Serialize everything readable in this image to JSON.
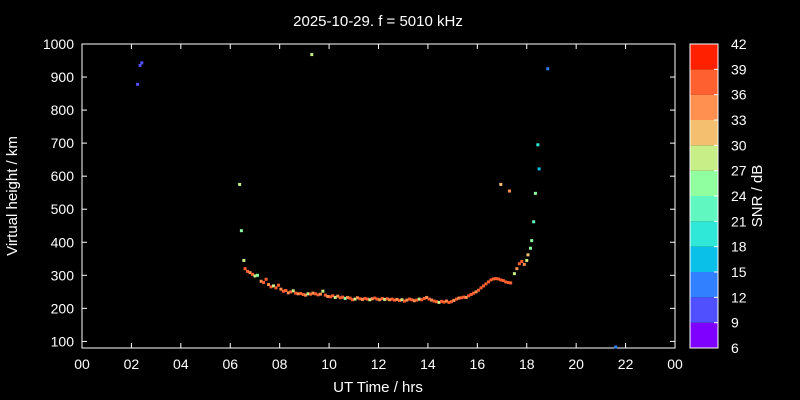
{
  "chart_data": {
    "type": "scatter",
    "title": "2025-10-29. f = 5010 kHz",
    "xlabel": "UT Time / hrs",
    "ylabel": "Virtual height / km",
    "xlim": [
      0,
      24
    ],
    "ylim": [
      80,
      1000
    ],
    "xticks": [
      "00",
      "02",
      "04",
      "06",
      "08",
      "10",
      "12",
      "14",
      "16",
      "18",
      "20",
      "22",
      "00"
    ],
    "yticks": [
      "100",
      "200",
      "300",
      "400",
      "500",
      "600",
      "700",
      "800",
      "900",
      "1000"
    ],
    "grid": false,
    "colorbar": {
      "label": "SNR / dB",
      "min": 6,
      "max": 42,
      "ticks": [
        "6",
        "9",
        "12",
        "15",
        "18",
        "21",
        "24",
        "27",
        "30",
        "33",
        "36",
        "39",
        "42"
      ],
      "colors": [
        "#8000ff",
        "#5050ff",
        "#3080ff",
        "#0ac0e8",
        "#30e8d8",
        "#60f8c0",
        "#90ffa0",
        "#c8ee88",
        "#f4c070",
        "#ff9050",
        "#ff6030",
        "#ff2000"
      ]
    },
    "points": [
      [
        2.25,
        878,
        9
      ],
      [
        2.35,
        935,
        9
      ],
      [
        2.42,
        943,
        9
      ],
      [
        9.3,
        968,
        27
      ],
      [
        18.85,
        925,
        12
      ],
      [
        6.38,
        575,
        27
      ],
      [
        6.45,
        435,
        24
      ],
      [
        6.55,
        345,
        27
      ],
      [
        6.6,
        320,
        36
      ],
      [
        6.7,
        312,
        36
      ],
      [
        6.8,
        308,
        33
      ],
      [
        6.9,
        303,
        36
      ],
      [
        7.0,
        298,
        27
      ],
      [
        7.1,
        300,
        24
      ],
      [
        7.25,
        282,
        33
      ],
      [
        7.35,
        278,
        36
      ],
      [
        7.45,
        288,
        36
      ],
      [
        7.55,
        272,
        33
      ],
      [
        7.65,
        265,
        36
      ],
      [
        7.75,
        268,
        27
      ],
      [
        7.85,
        262,
        36
      ],
      [
        7.95,
        270,
        36
      ],
      [
        8.05,
        258,
        33
      ],
      [
        8.15,
        252,
        36
      ],
      [
        8.25,
        254,
        36
      ],
      [
        8.35,
        247,
        33
      ],
      [
        8.45,
        250,
        36
      ],
      [
        8.55,
        253,
        27
      ],
      [
        8.65,
        246,
        36
      ],
      [
        8.75,
        244,
        33
      ],
      [
        8.85,
        245,
        36
      ],
      [
        8.95,
        242,
        36
      ],
      [
        9.05,
        240,
        33
      ],
      [
        9.15,
        244,
        27
      ],
      [
        9.25,
        243,
        36
      ],
      [
        9.35,
        246,
        33
      ],
      [
        9.45,
        244,
        36
      ],
      [
        9.55,
        241,
        36
      ],
      [
        9.65,
        243,
        33
      ],
      [
        9.75,
        252,
        27
      ],
      [
        9.85,
        240,
        36
      ],
      [
        9.95,
        236,
        33
      ],
      [
        10.05,
        235,
        36
      ],
      [
        10.15,
        238,
        36
      ],
      [
        10.25,
        233,
        27
      ],
      [
        10.35,
        237,
        33
      ],
      [
        10.45,
        232,
        36
      ],
      [
        10.55,
        234,
        36
      ],
      [
        10.65,
        230,
        24
      ],
      [
        10.75,
        233,
        33
      ],
      [
        10.85,
        231,
        36
      ],
      [
        10.95,
        226,
        36
      ],
      [
        11.05,
        228,
        27
      ],
      [
        11.15,
        232,
        33
      ],
      [
        11.25,
        229,
        36
      ],
      [
        11.35,
        227,
        33
      ],
      [
        11.45,
        230,
        36
      ],
      [
        11.55,
        228,
        36
      ],
      [
        11.65,
        226,
        27
      ],
      [
        11.75,
        229,
        33
      ],
      [
        11.85,
        231,
        36
      ],
      [
        11.95,
        228,
        36
      ],
      [
        12.05,
        226,
        33
      ],
      [
        12.15,
        230,
        36
      ],
      [
        12.25,
        227,
        27
      ],
      [
        12.35,
        229,
        36
      ],
      [
        12.45,
        226,
        33
      ],
      [
        12.55,
        228,
        36
      ],
      [
        12.65,
        225,
        36
      ],
      [
        12.75,
        227,
        33
      ],
      [
        12.85,
        224,
        36
      ],
      [
        12.95,
        226,
        27
      ],
      [
        13.05,
        222,
        36
      ],
      [
        13.15,
        225,
        33
      ],
      [
        13.25,
        228,
        36
      ],
      [
        13.35,
        226,
        36
      ],
      [
        13.45,
        223,
        33
      ],
      [
        13.55,
        225,
        36
      ],
      [
        13.65,
        228,
        27
      ],
      [
        13.75,
        226,
        36
      ],
      [
        13.85,
        230,
        36
      ],
      [
        13.95,
        233,
        33
      ],
      [
        14.05,
        228,
        36
      ],
      [
        14.15,
        225,
        33
      ],
      [
        14.25,
        222,
        36
      ],
      [
        14.35,
        220,
        36
      ],
      [
        14.45,
        218,
        27
      ],
      [
        14.55,
        221,
        36
      ],
      [
        14.65,
        219,
        36
      ],
      [
        14.75,
        222,
        33
      ],
      [
        14.85,
        218,
        36
      ],
      [
        14.95,
        220,
        36
      ],
      [
        15.05,
        224,
        33
      ],
      [
        15.15,
        228,
        36
      ],
      [
        15.25,
        231,
        33
      ],
      [
        15.35,
        232,
        36
      ],
      [
        15.45,
        234,
        36
      ],
      [
        15.55,
        233,
        33
      ],
      [
        15.65,
        238,
        36
      ],
      [
        15.75,
        242,
        36
      ],
      [
        15.85,
        246,
        36
      ],
      [
        15.95,
        250,
        33
      ],
      [
        16.05,
        255,
        36
      ],
      [
        16.15,
        262,
        36
      ],
      [
        16.25,
        268,
        36
      ],
      [
        16.35,
        274,
        36
      ],
      [
        16.45,
        280,
        36
      ],
      [
        16.55,
        286,
        36
      ],
      [
        16.65,
        289,
        36
      ],
      [
        16.75,
        290,
        36
      ],
      [
        16.85,
        289,
        36
      ],
      [
        16.95,
        286,
        36
      ],
      [
        17.05,
        284,
        36
      ],
      [
        17.15,
        280,
        36
      ],
      [
        17.25,
        278,
        36
      ],
      [
        17.35,
        277,
        36
      ],
      [
        16.95,
        575,
        30
      ],
      [
        17.3,
        555,
        33
      ],
      [
        17.5,
        305,
        27
      ],
      [
        17.6,
        320,
        33
      ],
      [
        17.7,
        335,
        36
      ],
      [
        17.8,
        342,
        36
      ],
      [
        17.9,
        333,
        33
      ],
      [
        18.0,
        345,
        27
      ],
      [
        18.05,
        362,
        30
      ],
      [
        18.15,
        382,
        24
      ],
      [
        18.2,
        405,
        24
      ],
      [
        18.28,
        462,
        21
      ],
      [
        18.35,
        548,
        24
      ],
      [
        18.45,
        695,
        18
      ],
      [
        18.5,
        622,
        15
      ],
      [
        21.6,
        83,
        12
      ]
    ]
  }
}
